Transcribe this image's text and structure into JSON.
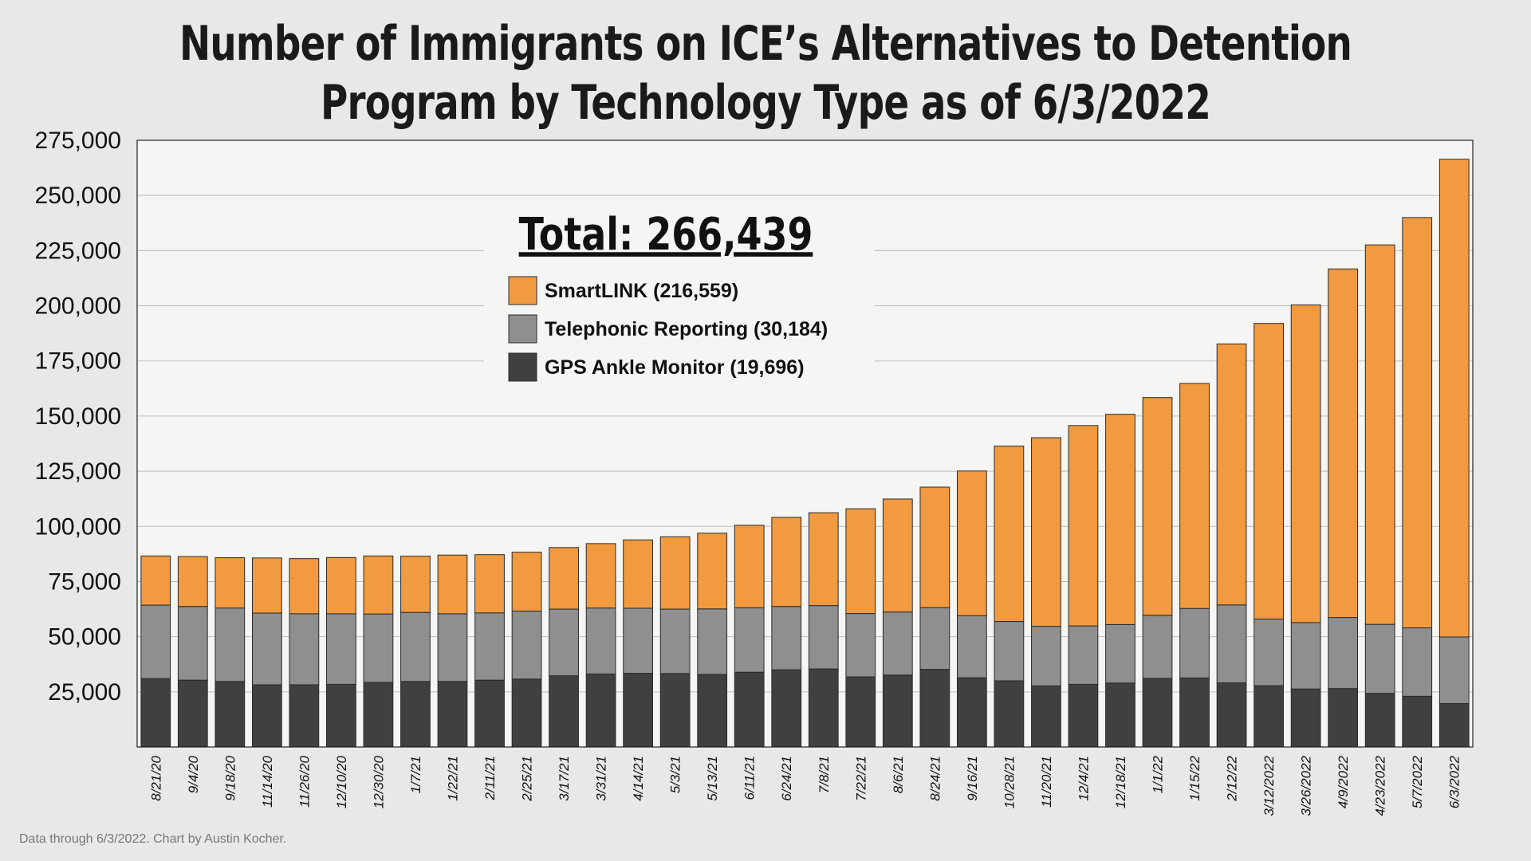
{
  "chart_data": {
    "type": "bar",
    "stacked": true,
    "title_lines": [
      "Number of Immigrants on ICE’s Alternatives to Detention",
      "Program by Technology Type as of 6/3/2022"
    ],
    "total_label": "Total: 266,439",
    "ylim": [
      0,
      275000
    ],
    "yticks": [
      {
        "value": 25000,
        "label": "25,000"
      },
      {
        "value": 50000,
        "label": "50,000"
      },
      {
        "value": 75000,
        "label": "75,000"
      },
      {
        "value": 100000,
        "label": "100,000"
      },
      {
        "value": 125000,
        "label": "125,000"
      },
      {
        "value": 150000,
        "label": "150,000"
      },
      {
        "value": 175000,
        "label": "175,000"
      },
      {
        "value": 200000,
        "label": "200,000"
      },
      {
        "value": 225000,
        "label": "225,000"
      },
      {
        "value": 250000,
        "label": "250,000"
      },
      {
        "value": 275000,
        "label": "275,000"
      }
    ],
    "grid": true,
    "legend_position": "top-center",
    "categories": [
      "8/21/20",
      "9/4/20",
      "9/18/20",
      "11/14/20",
      "11/26/20",
      "12/10/20",
      "12/30/20",
      "1/7/21",
      "1/22/21",
      "2/11/21",
      "2/25/21",
      "3/17/21",
      "3/31/21",
      "4/14/21",
      "5/3/21",
      "5/13/21",
      "6/11/21",
      "6/24/21",
      "7/8/21",
      "7/22/21",
      "8/6/21",
      "8/24/21",
      "9/16/21",
      "10/28/21",
      "11/20/21",
      "12/4/21",
      "12/18/21",
      "1/1/22",
      "1/15/22",
      "2/12/22",
      "3/12/2022",
      "3/26/2022",
      "4/9/2022",
      "4/23/2022",
      "5/7/2022",
      "6/3/2022"
    ],
    "series": [
      {
        "name": "GPS Ankle Monitor (19,696)",
        "color": "#404040",
        "values": [
          31000,
          30300,
          29700,
          28200,
          28200,
          28400,
          29300,
          29700,
          29700,
          30300,
          30800,
          32300,
          33100,
          33400,
          33300,
          32900,
          33900,
          35000,
          35400,
          31800,
          32600,
          35200,
          31400,
          30000,
          27700,
          28400,
          29000,
          31100,
          31300,
          29100,
          27800,
          26300,
          26500,
          24300,
          23000,
          19696
        ]
      },
      {
        "name": "Telephonic Reporting (30,184)",
        "color": "#8f8f8f",
        "values": [
          33300,
          33400,
          33300,
          32500,
          32200,
          32000,
          31000,
          31300,
          30700,
          30500,
          30800,
          30200,
          29900,
          29500,
          29200,
          29700,
          29200,
          28700,
          28700,
          28700,
          28600,
          28000,
          28100,
          26900,
          27000,
          26500,
          26500,
          28600,
          31500,
          35300,
          30200,
          30100,
          32200,
          31300,
          31000,
          30184
        ]
      },
      {
        "name": "SmartLINK (216,559)",
        "color": "#f29a3f",
        "values": [
          22300,
          22600,
          22800,
          25000,
          25000,
          25500,
          26300,
          25500,
          26600,
          26400,
          26700,
          27900,
          29200,
          31000,
          32800,
          34300,
          37400,
          40400,
          42100,
          47500,
          51200,
          54600,
          65600,
          79500,
          85500,
          90800,
          95300,
          98700,
          102000,
          118300,
          134000,
          144000,
          158000,
          172000,
          186000,
          216559
        ]
      }
    ]
  },
  "footnote": "Data through 6/3/2022. Chart by Austin Kocher."
}
